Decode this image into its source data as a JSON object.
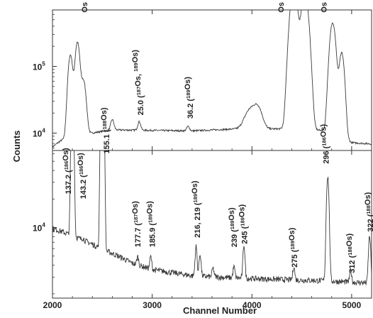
{
  "chart_data": {
    "type": "line",
    "xlabel": "Channel Number",
    "ylabel": "Counts",
    "xlim": [
      2000,
      5200
    ],
    "x_ticks": [
      "2000",
      "3000",
      "4000",
      "5000"
    ],
    "y_scale": "log",
    "colors": {
      "trace": "#3a3a3a",
      "axes": "#333333"
    },
    "panels": [
      {
        "name": "top",
        "ylim": [
          5500,
          700000
        ],
        "y_ticks": [
          {
            "value": 10000,
            "base": "10",
            "exp": "4"
          },
          {
            "value": 100000,
            "base": "10",
            "exp": "5"
          }
        ],
        "baseline": [
          [
            2000,
            6200
          ],
          [
            2100,
            8000
          ],
          [
            2300,
            9500
          ],
          [
            2600,
            11200
          ],
          [
            3000,
            11000
          ],
          [
            3400,
            10800
          ],
          [
            3800,
            11500
          ],
          [
            4300,
            11600
          ],
          [
            4500,
            11500
          ],
          [
            4700,
            11000
          ],
          [
            4850,
            10000
          ],
          [
            5000,
            7200
          ],
          [
            5200,
            6900
          ]
        ],
        "peaks": [
          {
            "x": 2180,
            "height": 140000,
            "width": 20
          },
          {
            "x": 2250,
            "height": 220000,
            "width": 20
          },
          {
            "x": 2310,
            "height": 52000,
            "width": 22
          },
          {
            "x": 2600,
            "height": 4800,
            "width": 15
          },
          {
            "x": 2870,
            "height": 3800,
            "width": 14
          },
          {
            "x": 3360,
            "height": 1800,
            "width": 14
          },
          {
            "x": 3980,
            "height": 10500,
            "width": 50
          },
          {
            "x": 4060,
            "height": 12000,
            "width": 40
          },
          {
            "x": 4420,
            "height": 1500000,
            "width": 30
          },
          {
            "x": 4530,
            "height": 1200000,
            "width": 30
          },
          {
            "x": 4810,
            "height": 440000,
            "width": 25
          },
          {
            "x": 4900,
            "height": 150000,
            "width": 22
          }
        ],
        "labels": [
          {
            "text": "Os L-Xrays",
            "sup": "",
            "suffix": "",
            "x": 2320,
            "y": 640000
          },
          {
            "text": "25.0 (",
            "sup": "187",
            "suffix": "Os,  ",
            "sup2": "189",
            "suffix2": "Os)",
            "x": 2880,
            "y": 18500
          },
          {
            "text": "36.2 (",
            "sup": "189",
            "suffix": "Os)",
            "x": 3380,
            "y": 16500
          },
          {
            "text": "Os Kα-Xrays",
            "sup": "",
            "suffix": "",
            "x": 4290,
            "y": 640000
          },
          {
            "text": "Os Kβ-Xrays",
            "sup": "",
            "suffix": "",
            "x": 4720,
            "y": 640000
          }
        ]
      },
      {
        "name": "bottom",
        "ylim": [
          1800,
          65000
        ],
        "y_ticks": [
          {
            "value": 10000,
            "base": "10",
            "exp": "4"
          }
        ],
        "baseline": [
          [
            2000,
            9800
          ],
          [
            2100,
            9000
          ],
          [
            2200,
            8200
          ],
          [
            2500,
            5900
          ],
          [
            2800,
            4200
          ],
          [
            3000,
            3600
          ],
          [
            3400,
            3100
          ],
          [
            3800,
            2950
          ],
          [
            4200,
            2850
          ],
          [
            4700,
            2750
          ],
          [
            5000,
            2650
          ],
          [
            5200,
            2600
          ]
        ],
        "peaks": [
          {
            "x": 2200,
            "height": 320000,
            "width": 10
          },
          {
            "x": 2305,
            "height": 400,
            "width": 10
          },
          {
            "x": 2500,
            "height": 1400000,
            "width": 10
          },
          {
            "x": 2855,
            "height": 900,
            "width": 9
          },
          {
            "x": 2985,
            "height": 1300,
            "width": 9
          },
          {
            "x": 3440,
            "height": 3200,
            "width": 9
          },
          {
            "x": 3480,
            "height": 2200,
            "width": 9
          },
          {
            "x": 3610,
            "height": 700,
            "width": 9
          },
          {
            "x": 3820,
            "height": 900,
            "width": 9
          },
          {
            "x": 3920,
            "height": 3700,
            "width": 9
          },
          {
            "x": 4420,
            "height": 1100,
            "width": 9
          },
          {
            "x": 4760,
            "height": 32000,
            "width": 11
          },
          {
            "x": 4990,
            "height": 900,
            "width": 9
          },
          {
            "x": 5180,
            "height": 5500,
            "width": 10
          }
        ],
        "labels": [
          {
            "text": "137.2 (",
            "sup": "186",
            "suffix": "Os)",
            "x": 2155,
            "y": 22500
          },
          {
            "text": "143.2 (",
            "sup": "186",
            "suffix": "Os)",
            "x": 2305,
            "y": 20000
          },
          {
            "text": "155.1 (",
            "sup": "188",
            "suffix": "Os)",
            "x": 2540,
            "y": 60000
          },
          {
            "text": "177.7 (",
            "sup": "187",
            "suffix": "Os)",
            "x": 2855,
            "y": 6200
          },
          {
            "text": "185.9 (",
            "sup": "189",
            "suffix": "Os)",
            "x": 3000,
            "y": 6200
          },
          {
            "text": "216, 219 (",
            "sup": "189",
            "suffix": "Os)",
            "x": 3450,
            "y": 7800
          },
          {
            "text": "239 (",
            "sup": "189",
            "suffix": "Os)",
            "x": 3820,
            "y": 6200
          },
          {
            "text": "245 (",
            "sup": "189",
            "suffix": "Os)",
            "x": 3925,
            "y": 6700
          },
          {
            "text": "275 (",
            "sup": "189",
            "suffix": "Os)",
            "x": 4425,
            "y": 3800
          },
          {
            "text": "296 (",
            "sup": "186",
            "suffix": "Os)",
            "x": 4740,
            "y": 47000
          },
          {
            "text": "312 (",
            "sup": "188",
            "suffix": "Os)",
            "x": 5000,
            "y": 3300
          },
          {
            "text": "322 (",
            "sup": "188",
            "suffix": "Os)",
            "x": 5185,
            "y": 9000
          }
        ]
      }
    ]
  }
}
